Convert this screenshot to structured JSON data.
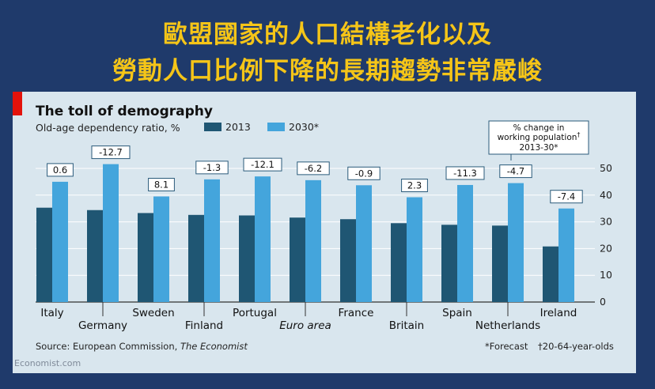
{
  "slide": {
    "title_line1": "歐盟國家的人口結構老化以及",
    "title_line2": "勞動人口比例下降的長期趨勢非常嚴峻",
    "watermark": "Economist.com"
  },
  "colors": {
    "background": "#1f3a6b",
    "title": "#f5c518",
    "chart_bg": "#d9e6ee",
    "series_2013": "#1f5673",
    "series_2030": "#44a5dc",
    "accent_red": "#e3120b"
  },
  "chart_data": {
    "type": "bar",
    "title": "The toll of demography",
    "ylabel": "Old-age dependency ratio, %",
    "ylim": [
      0,
      50
    ],
    "yticks": [
      0,
      10,
      20,
      30,
      40,
      50
    ],
    "categories": [
      "Italy",
      "Germany",
      "Sweden",
      "Finland",
      "Portugal",
      "Euro area",
      "France",
      "Britain",
      "Spain",
      "Netherlands",
      "Ireland"
    ],
    "italic_categories": [
      "Euro area"
    ],
    "series": [
      {
        "name": "2013",
        "values": [
          35.3,
          34.4,
          33.3,
          32.6,
          32.4,
          31.6,
          31.0,
          29.5,
          28.9,
          28.6,
          20.8
        ]
      },
      {
        "name": "2030*",
        "values": [
          45.0,
          51.6,
          39.5,
          45.9,
          47.0,
          45.6,
          43.7,
          39.2,
          43.8,
          44.5,
          35.0
        ]
      }
    ],
    "annotations": [
      "0.6",
      "-12.7",
      "8.1",
      "-1.3",
      "-12.1",
      "-6.2",
      "-0.9",
      "2.3",
      "-11.3",
      "-4.7",
      "-7.4"
    ],
    "callout": {
      "line1": "% change in",
      "line2": "working population",
      "dagger": "†",
      "line3": "2013-30*"
    },
    "source_prefix": "Source: European Commission, ",
    "source_italic": "The Economist",
    "footnote_forecast": "*Forecast",
    "footnote_dagger": "†20-64-year-olds"
  }
}
